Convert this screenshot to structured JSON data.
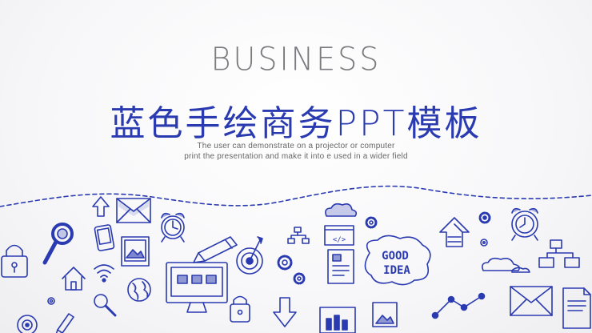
{
  "slide": {
    "kicker": "BUSINESS",
    "title": "蓝色手绘商务PPT模板",
    "subtitle_line1": "The user can demonstrate on a projector or computer",
    "subtitle_line2": "print the presentation and make it into e used in a wider field",
    "doodle_texts": {
      "good": "GOOD",
      "idea": "IDEA",
      "code": "</>"
    }
  },
  "colors": {
    "ink": "#2a3ab0",
    "gray_text": "#7b7b7f",
    "background": "#f4f4f6"
  },
  "icons": [
    "padlock-icon",
    "magnifier-icon",
    "house-icon",
    "wifi-icon",
    "globe-icon",
    "envelope-icon",
    "arrow-up-icon",
    "smartphone-icon",
    "image-frame-icon",
    "alarm-clock-icon",
    "compass-icon",
    "pencil-icon",
    "target-icon",
    "cloud-icon",
    "gear-icon",
    "hierarchy-icon",
    "code-window-icon",
    "document-icon",
    "monitor-icon",
    "arrow-down-icon",
    "bar-chart-icon",
    "lightbulb-speech-icon",
    "trend-line-icon",
    "chevron-up-arrow-icon"
  ]
}
